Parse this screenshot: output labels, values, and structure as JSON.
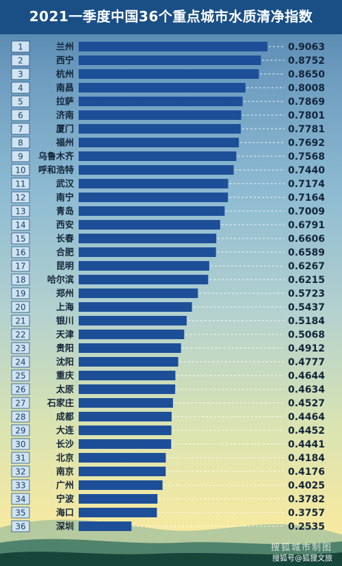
{
  "title": "2021一季度中国36个重点城市水质清净指数",
  "watermark": {
    "line1": "搜狐城市制图",
    "line2": "搜狐号@狐狸文旅"
  },
  "colors": {
    "bar": "#1d4f99",
    "title_bg": "#1a4f86",
    "rank_box": "#cfe3f2"
  },
  "chart_data": {
    "type": "bar",
    "orientation": "horizontal",
    "ranks": [
      "1",
      "2",
      "3",
      "4",
      "5",
      "6",
      "7",
      "8",
      "9",
      "10",
      "11",
      "12",
      "13",
      "14",
      "15",
      "16",
      "17",
      "18",
      "19",
      "20",
      "21",
      "22",
      "23",
      "24",
      "25",
      "26",
      "27",
      "28",
      "29",
      "30",
      "31",
      "32",
      "33",
      "34",
      "35",
      "36"
    ],
    "categories": [
      "兰州",
      "西宁",
      "杭州",
      "南昌",
      "拉萨",
      "济南",
      "厦门",
      "福州",
      "乌鲁木齐",
      "呼和浩特",
      "武汉",
      "南宁",
      "青岛",
      "西安",
      "长春",
      "合肥",
      "昆明",
      "哈尔滨",
      "郑州",
      "上海",
      "银川",
      "天津",
      "贵阳",
      "沈阳",
      "重庆",
      "太原",
      "石家庄",
      "成都",
      "大连",
      "长沙",
      "北京",
      "南京",
      "广州",
      "宁波",
      "海口",
      "深圳"
    ],
    "values": [
      0.9063,
      0.8752,
      0.865,
      0.8008,
      0.7869,
      0.7801,
      0.7781,
      0.7692,
      0.7568,
      0.744,
      0.7174,
      0.7164,
      0.7009,
      0.6791,
      0.6606,
      0.6589,
      0.6267,
      0.6215,
      0.5723,
      0.5437,
      0.5184,
      0.5068,
      0.4912,
      0.4777,
      0.4644,
      0.4634,
      0.4527,
      0.4464,
      0.4452,
      0.4441,
      0.4184,
      0.4176,
      0.4025,
      0.3782,
      0.3757,
      0.2535
    ],
    "labels": [
      "0.9063",
      "0.8752",
      "0.8650",
      "0.8008",
      "0.7869",
      "0.7801",
      "0.7781",
      "0.7692",
      "0.7568",
      "0.7440",
      "0.7174",
      "0.7164",
      "0.7009",
      "0.6791",
      "0.6606",
      "0.6589",
      "0.6267",
      "0.6215",
      "0.5723",
      "0.5437",
      "0.5184",
      "0.5068",
      "0.4912",
      "0.4777",
      "0.4644",
      "0.4634",
      "0.4527",
      "0.4464",
      "0.4452",
      "0.4441",
      "0.4184",
      "0.4176",
      "0.4025",
      "0.3782",
      "0.3757",
      "0.2535"
    ],
    "xlim": [
      0,
      0.9063
    ],
    "grid": false,
    "legend": "none"
  }
}
